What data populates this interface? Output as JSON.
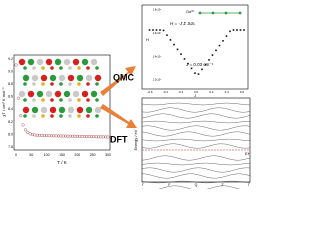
{
  "left_plot": {
    "y_label": "χT / cm³ K mol⁻¹",
    "x_label": "T / K",
    "x_ticks": [
      "0",
      "50",
      "100",
      "150",
      "200",
      "250",
      "300"
    ],
    "y_ticks": [
      "7.8",
      "8.0",
      "8.2",
      "8.4",
      "8.6",
      "8.8",
      "9.0",
      "9.2"
    ]
  },
  "labels": {
    "qmc": "QMC",
    "dft": "DFT"
  },
  "top_plot": {
    "ion": "Gd³⁺",
    "hamiltonian": "H = -J Σ SᵢSⱼ",
    "coupling": "J = 0.03 cm⁻¹",
    "y_label": "H",
    "x_label": "J",
    "x_ticks": [
      "-0.6",
      "-0.4",
      "-0.2",
      "0.0",
      "0.2",
      "0.4",
      "0.6"
    ],
    "y_ticks": [
      "1.8x10⁴",
      "1.6x10⁴",
      "1.4x10⁴",
      "1.2x10⁴"
    ]
  },
  "bottom_plot": {
    "y_label": "Energy / eV",
    "x_ticks": [
      "Γ",
      "F",
      "Q",
      "Z",
      "Γ"
    ],
    "fermi": "Eꜰ"
  }
}
